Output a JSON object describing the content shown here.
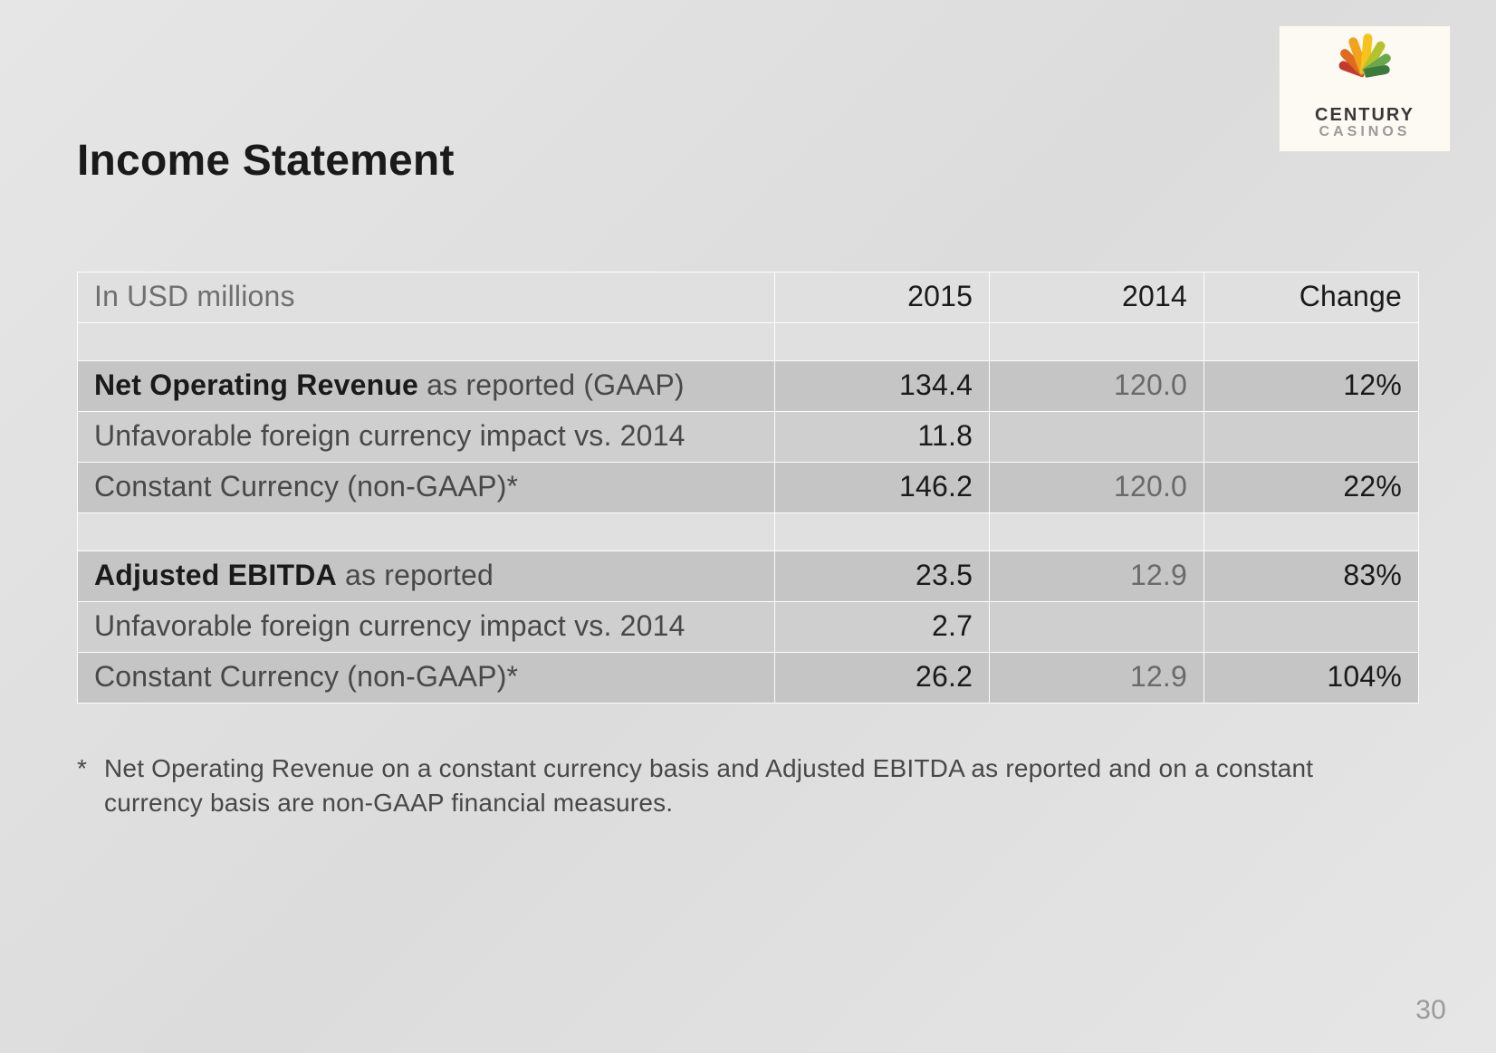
{
  "slide": {
    "title": "Income Statement",
    "page_number": "30",
    "footnote_marker": "*",
    "footnote_text": "Net Operating Revenue on a constant currency basis and Adjusted EBITDA as reported and on a constant currency basis are non-GAAP financial measures."
  },
  "logo": {
    "line1": "CENTURY",
    "line2": "CASINOS",
    "petals": [
      {
        "rot": -70,
        "len": 30,
        "color": "#c23a2e"
      },
      {
        "rot": -45,
        "len": 36,
        "color": "#e06b1f"
      },
      {
        "rot": -20,
        "len": 42,
        "color": "#f2a31b"
      },
      {
        "rot": 5,
        "len": 44,
        "color": "#f8c21c"
      },
      {
        "rot": 30,
        "len": 40,
        "color": "#b4c22e"
      },
      {
        "rot": 55,
        "len": 34,
        "color": "#6aa64a"
      },
      {
        "rot": 80,
        "len": 28,
        "color": "#3c7a3c"
      }
    ]
  },
  "table": {
    "headers": {
      "label": "In USD millions",
      "col_a": "2015",
      "col_b": "2014",
      "col_c": "Change"
    },
    "rows": [
      {
        "type": "spacer"
      },
      {
        "type": "data",
        "shade": "a",
        "label_bold": "Net Operating Revenue",
        "label_rest": " as reported (GAAP)",
        "col_a": "134.4",
        "col_b": "120.0",
        "col_c": "12%"
      },
      {
        "type": "data",
        "shade": "b",
        "label_bold": "",
        "label_rest": "Unfavorable foreign currency impact vs. 2014",
        "col_a": "11.8",
        "col_b": "",
        "col_c": ""
      },
      {
        "type": "data",
        "shade": "a",
        "label_bold": "",
        "label_rest": "Constant Currency (non-GAAP)*",
        "col_a": "146.2",
        "col_b": "120.0",
        "col_c": "22%"
      },
      {
        "type": "spacer"
      },
      {
        "type": "data",
        "shade": "a",
        "label_bold": "Adjusted EBITDA",
        "label_rest": " as reported",
        "col_a": "23.5",
        "col_b": "12.9",
        "col_c": "83%"
      },
      {
        "type": "data",
        "shade": "b",
        "label_bold": "",
        "label_rest": "Unfavorable foreign currency impact vs. 2014",
        "col_a": "2.7",
        "col_b": "",
        "col_c": ""
      },
      {
        "type": "data",
        "shade": "a",
        "label_bold": "",
        "label_rest": "Constant Currency (non-GAAP)*",
        "col_a": "26.2",
        "col_b": "12.9",
        "col_c": "104%"
      }
    ]
  }
}
